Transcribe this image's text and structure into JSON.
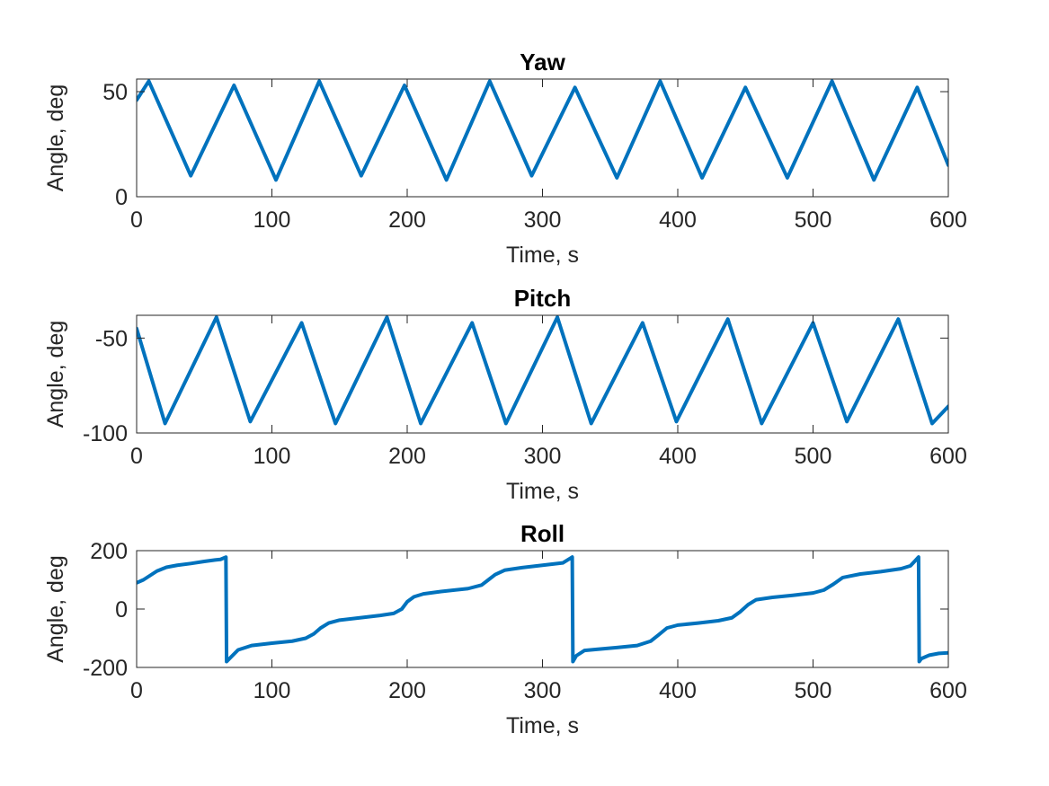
{
  "chart_data": [
    {
      "type": "line",
      "title": "Yaw",
      "xlabel": "Time, s",
      "ylabel": "Angle, deg",
      "xlim": [
        0,
        600
      ],
      "ylim": [
        0,
        56
      ],
      "xticks": [
        0,
        100,
        200,
        300,
        400,
        500,
        600
      ],
      "yticks": [
        0,
        50
      ],
      "xtick_labels": [
        "0",
        "100",
        "200",
        "300",
        "400",
        "500",
        "600"
      ],
      "ytick_labels": [
        "0",
        "50"
      ],
      "color": "#0072BD",
      "grid": false,
      "series": [
        {
          "x": [
            0,
            9,
            40,
            72,
            103,
            135,
            166,
            198,
            229,
            261,
            292,
            324,
            355,
            387,
            418,
            450,
            481,
            514,
            545,
            577,
            600
          ],
          "values": [
            46,
            55,
            10,
            53,
            8,
            55,
            10,
            53,
            8,
            55,
            10,
            52,
            9,
            55,
            9,
            52,
            9,
            55,
            8,
            52,
            15
          ]
        }
      ]
    },
    {
      "type": "line",
      "title": "Pitch",
      "xlabel": "Time, s",
      "ylabel": "Angle, deg",
      "xlim": [
        0,
        600
      ],
      "ylim": [
        -100,
        -38
      ],
      "xticks": [
        0,
        100,
        200,
        300,
        400,
        500,
        600
      ],
      "yticks": [
        -100,
        -50
      ],
      "xtick_labels": [
        "0",
        "100",
        "200",
        "300",
        "400",
        "500",
        "600"
      ],
      "ytick_labels": [
        "-100",
        "-50"
      ],
      "color": "#0072BD",
      "grid": false,
      "series": [
        {
          "x": [
            0,
            21,
            59,
            84,
            122,
            147,
            185,
            210,
            248,
            273,
            311,
            336,
            374,
            399,
            437,
            462,
            500,
            525,
            563,
            588,
            600
          ],
          "values": [
            -45,
            -95,
            -39,
            -94,
            -42,
            -95,
            -39,
            -95,
            -42,
            -95,
            -39,
            -95,
            -42,
            -94,
            -40,
            -95,
            -42,
            -94,
            -40,
            -95,
            -86
          ]
        }
      ]
    },
    {
      "type": "line",
      "title": "Roll",
      "xlabel": "Time, s",
      "ylabel": "Angle, deg",
      "xlim": [
        0,
        600
      ],
      "ylim": [
        -200,
        200
      ],
      "xticks": [
        0,
        100,
        200,
        300,
        400,
        500,
        600
      ],
      "yticks": [
        -200,
        0,
        200
      ],
      "xtick_labels": [
        "0",
        "100",
        "200",
        "300",
        "400",
        "500",
        "600"
      ],
      "ytick_labels": [
        "-200",
        "0",
        "200"
      ],
      "color": "#0072BD",
      "grid": false,
      "series": [
        {
          "x": [
            0,
            5,
            10,
            15,
            22,
            30,
            40,
            50,
            58,
            62,
            66,
            66.5,
            69,
            75,
            85,
            100,
            115,
            125,
            131,
            136,
            142,
            150,
            165,
            180,
            190,
            196,
            200,
            205,
            212,
            225,
            245,
            255,
            260,
            265,
            272,
            285,
            300,
            315,
            322,
            322.5,
            325,
            331,
            340,
            355,
            370,
            380,
            386,
            392,
            400,
            415,
            430,
            440,
            446,
            452,
            458,
            470,
            485,
            500,
            508,
            515,
            522,
            535,
            550,
            565,
            572,
            578,
            578.5,
            580,
            586,
            593,
            600
          ],
          "values": [
            90,
            100,
            115,
            130,
            143,
            150,
            156,
            163,
            168,
            170,
            178,
            -180,
            -168,
            -140,
            -125,
            -117,
            -110,
            -100,
            -85,
            -65,
            -48,
            -38,
            -30,
            -22,
            -15,
            0,
            25,
            42,
            52,
            60,
            70,
            82,
            100,
            118,
            133,
            142,
            150,
            158,
            178,
            -180,
            -160,
            -142,
            -138,
            -132,
            -125,
            -110,
            -88,
            -65,
            -55,
            -48,
            -40,
            -30,
            -10,
            15,
            32,
            40,
            47,
            55,
            65,
            85,
            108,
            120,
            128,
            138,
            148,
            178,
            -180,
            -170,
            -158,
            -152,
            -150
          ]
        }
      ]
    }
  ]
}
